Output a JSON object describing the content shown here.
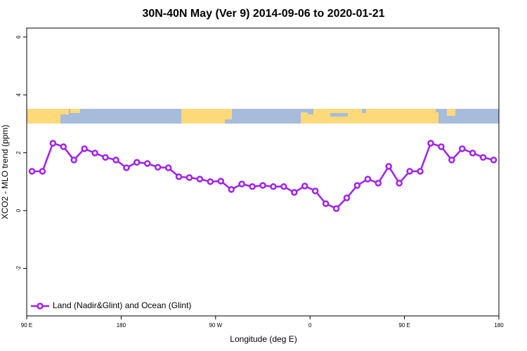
{
  "chart_data": {
    "type": "line",
    "title": "30N-40N May (Ver 9)   2014-09-06 to 2020-01-21",
    "x_label": "Longitude (deg E)",
    "y_label": "XCO2 - MLO trend (ppm)",
    "x": [
      95,
      105,
      115,
      125,
      135,
      145,
      155,
      165,
      175,
      185,
      195,
      205,
      215,
      225,
      235,
      245,
      255,
      265,
      275,
      285,
      295,
      305,
      315,
      325,
      335,
      345,
      355,
      365,
      375,
      385,
      395,
      405,
      415,
      425,
      435,
      445,
      455,
      465,
      475,
      485,
      495,
      505,
      515,
      525,
      535
    ],
    "series": [
      {
        "name": "Land (Nadir&Glint) and Ocean (Glint)",
        "color": "#a020f0",
        "values": [
          1.36,
          1.36,
          2.33,
          2.21,
          1.75,
          2.14,
          1.99,
          1.84,
          1.75,
          1.48,
          1.67,
          1.63,
          1.5,
          1.48,
          1.17,
          1.14,
          1.09,
          1.0,
          1.02,
          0.73,
          0.92,
          0.83,
          0.87,
          0.83,
          0.83,
          0.63,
          0.85,
          0.68,
          0.24,
          0.07,
          0.44,
          0.87,
          1.09,
          0.95,
          1.53,
          0.95,
          1.36,
          1.36,
          2.33,
          2.21,
          1.75,
          2.14,
          1.99,
          1.84,
          1.75
        ]
      }
    ],
    "xlim": [
      90,
      540
    ],
    "xticks": [
      {
        "value": 90,
        "label": "90 E"
      },
      180,
      {
        "value": 270,
        "label": "90 W"
      },
      {
        "value": 360,
        "label": "0"
      },
      {
        "value": 450,
        "label": "90 E"
      },
      {
        "value": 540,
        "label": "180"
      }
    ],
    "ylim": [
      -3.64,
      6.31
    ],
    "yticks": [
      -2,
      0,
      2,
      4,
      6
    ],
    "legend": "bottom-left"
  }
}
